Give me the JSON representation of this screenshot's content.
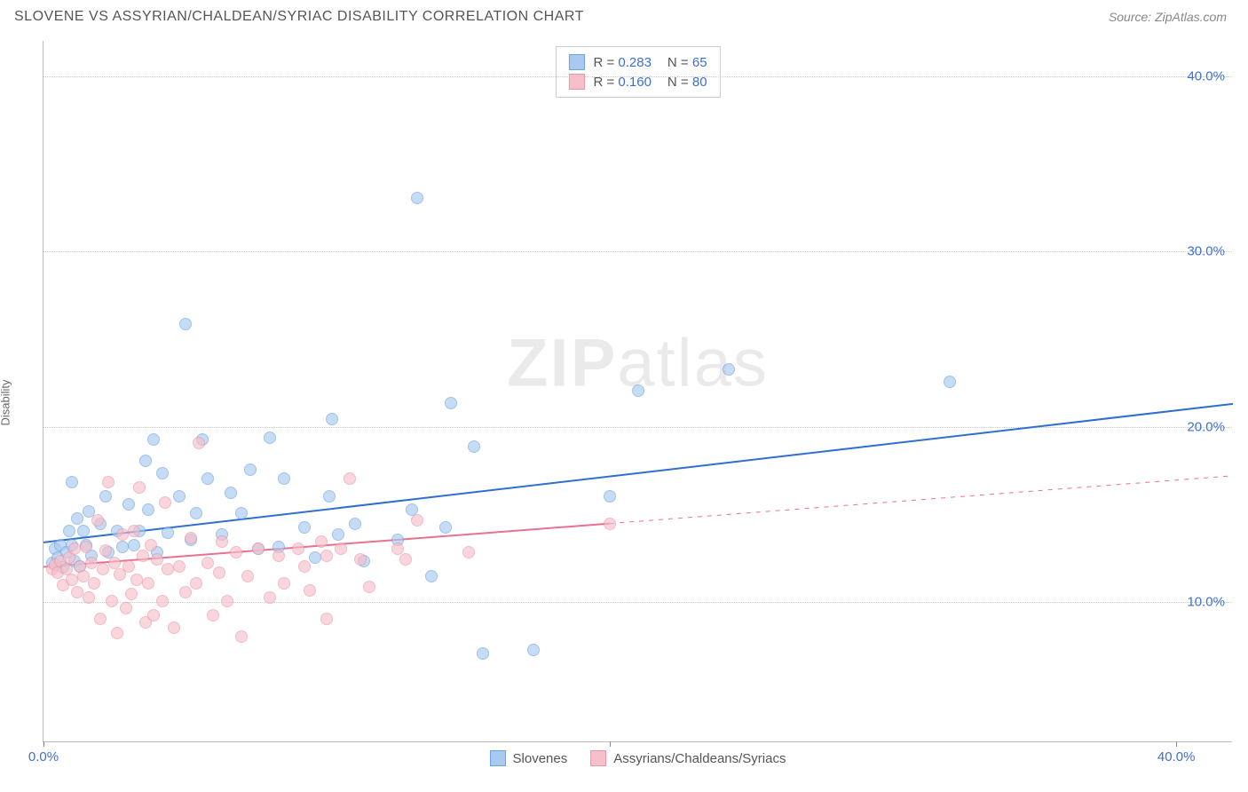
{
  "title": "SLOVENE VS ASSYRIAN/CHALDEAN/SYRIAC DISABILITY CORRELATION CHART",
  "source": "Source: ZipAtlas.com",
  "ylabel": "Disability",
  "watermark_bold": "ZIP",
  "watermark_rest": "atlas",
  "chart": {
    "type": "scatter",
    "background_color": "#ffffff",
    "grid_color": "#cccccc",
    "axis_label_color": "#3b6fd4",
    "xlim": [
      0,
      42
    ],
    "ylim": [
      2,
      42
    ],
    "xticks": [
      {
        "pos": 0,
        "label": "0.0%"
      },
      {
        "pos": 20,
        "label": ""
      },
      {
        "pos": 40,
        "label": "40.0%"
      }
    ],
    "yticks": [
      {
        "pos": 10,
        "label": "10.0%"
      },
      {
        "pos": 20,
        "label": "20.0%"
      },
      {
        "pos": 30,
        "label": "30.0%"
      },
      {
        "pos": 40,
        "label": "40.0%"
      }
    ],
    "marker_radius": 7,
    "series": [
      {
        "name": "Slovenes",
        "fill_color": "#a9caf0",
        "stroke_color": "#6da2e4",
        "fill_opacity": 0.65,
        "r_value": "0.283",
        "n_value": "65",
        "trend": {
          "x1": 0,
          "y1": 13.4,
          "x2": 42,
          "y2": 21.3,
          "color": "#2f6fd0",
          "width": 2,
          "dash": false
        },
        "points": [
          [
            0.3,
            12.2
          ],
          [
            0.4,
            13.0
          ],
          [
            0.5,
            12.5
          ],
          [
            0.6,
            13.2
          ],
          [
            0.7,
            11.9
          ],
          [
            0.8,
            12.8
          ],
          [
            0.9,
            14.0
          ],
          [
            1.0,
            13.2
          ],
          [
            1.0,
            16.8
          ],
          [
            1.1,
            12.3
          ],
          [
            1.2,
            14.7
          ],
          [
            1.3,
            12.0
          ],
          [
            1.4,
            14.0
          ],
          [
            1.5,
            13.2
          ],
          [
            1.6,
            15.1
          ],
          [
            1.7,
            12.6
          ],
          [
            2.0,
            14.4
          ],
          [
            2.2,
            16.0
          ],
          [
            2.3,
            12.8
          ],
          [
            2.6,
            14.0
          ],
          [
            2.8,
            13.1
          ],
          [
            3.0,
            15.5
          ],
          [
            3.2,
            13.2
          ],
          [
            3.4,
            14.0
          ],
          [
            3.6,
            18.0
          ],
          [
            3.7,
            15.2
          ],
          [
            3.9,
            19.2
          ],
          [
            4.0,
            12.8
          ],
          [
            4.2,
            17.3
          ],
          [
            4.4,
            13.9
          ],
          [
            4.8,
            16.0
          ],
          [
            5.0,
            25.8
          ],
          [
            5.2,
            13.5
          ],
          [
            5.4,
            15.0
          ],
          [
            5.6,
            19.2
          ],
          [
            5.8,
            17.0
          ],
          [
            6.3,
            13.8
          ],
          [
            6.6,
            16.2
          ],
          [
            7.0,
            15.0
          ],
          [
            7.3,
            17.5
          ],
          [
            7.6,
            13.0
          ],
          [
            8.0,
            19.3
          ],
          [
            8.3,
            13.1
          ],
          [
            8.5,
            17.0
          ],
          [
            9.2,
            14.2
          ],
          [
            9.6,
            12.5
          ],
          [
            10.1,
            16.0
          ],
          [
            10.2,
            20.4
          ],
          [
            10.4,
            13.8
          ],
          [
            11.0,
            14.4
          ],
          [
            11.3,
            12.3
          ],
          [
            12.5,
            13.5
          ],
          [
            13.0,
            15.2
          ],
          [
            13.2,
            33.0
          ],
          [
            13.7,
            11.4
          ],
          [
            14.2,
            14.2
          ],
          [
            14.4,
            21.3
          ],
          [
            15.2,
            18.8
          ],
          [
            15.5,
            7.0
          ],
          [
            17.3,
            7.2
          ],
          [
            20.0,
            16.0
          ],
          [
            21.0,
            22.0
          ],
          [
            24.2,
            23.2
          ],
          [
            32.0,
            22.5
          ]
        ]
      },
      {
        "name": "Assyrians/Chaldeans/Syriacs",
        "fill_color": "#f6bfca",
        "stroke_color": "#ec97a9",
        "fill_opacity": 0.65,
        "r_value": "0.160",
        "n_value": "80",
        "trend": {
          "x1": 0,
          "y1": 12.0,
          "x2": 42,
          "y2": 17.2,
          "color": "#e9718e",
          "width": 2,
          "dash_after": 20
        },
        "points": [
          [
            0.3,
            11.8
          ],
          [
            0.4,
            12.1
          ],
          [
            0.5,
            11.6
          ],
          [
            0.6,
            12.3
          ],
          [
            0.7,
            10.9
          ],
          [
            0.8,
            11.8
          ],
          [
            0.9,
            12.5
          ],
          [
            1.0,
            11.2
          ],
          [
            1.1,
            13.0
          ],
          [
            1.2,
            10.5
          ],
          [
            1.3,
            12.0
          ],
          [
            1.4,
            11.4
          ],
          [
            1.5,
            13.1
          ],
          [
            1.6,
            10.2
          ],
          [
            1.7,
            12.2
          ],
          [
            1.8,
            11.0
          ],
          [
            1.9,
            14.6
          ],
          [
            2.0,
            9.0
          ],
          [
            2.1,
            11.8
          ],
          [
            2.2,
            12.9
          ],
          [
            2.3,
            16.8
          ],
          [
            2.4,
            10.0
          ],
          [
            2.5,
            12.2
          ],
          [
            2.6,
            8.2
          ],
          [
            2.7,
            11.5
          ],
          [
            2.8,
            13.8
          ],
          [
            2.9,
            9.6
          ],
          [
            3.0,
            12.0
          ],
          [
            3.1,
            10.4
          ],
          [
            3.2,
            14.0
          ],
          [
            3.3,
            11.2
          ],
          [
            3.4,
            16.5
          ],
          [
            3.5,
            12.6
          ],
          [
            3.6,
            8.8
          ],
          [
            3.7,
            11.0
          ],
          [
            3.8,
            13.2
          ],
          [
            3.9,
            9.2
          ],
          [
            4.0,
            12.4
          ],
          [
            4.2,
            10.0
          ],
          [
            4.3,
            15.6
          ],
          [
            4.4,
            11.8
          ],
          [
            4.6,
            8.5
          ],
          [
            4.8,
            12.0
          ],
          [
            5.0,
            10.5
          ],
          [
            5.2,
            13.6
          ],
          [
            5.4,
            11.0
          ],
          [
            5.5,
            19.0
          ],
          [
            5.8,
            12.2
          ],
          [
            6.0,
            9.2
          ],
          [
            6.2,
            11.6
          ],
          [
            6.3,
            13.4
          ],
          [
            6.5,
            10.0
          ],
          [
            6.8,
            12.8
          ],
          [
            7.0,
            8.0
          ],
          [
            7.2,
            11.4
          ],
          [
            7.6,
            13.0
          ],
          [
            8.0,
            10.2
          ],
          [
            8.3,
            12.6
          ],
          [
            8.5,
            11.0
          ],
          [
            9.0,
            13.0
          ],
          [
            9.2,
            12.0
          ],
          [
            9.4,
            10.6
          ],
          [
            9.8,
            13.4
          ],
          [
            10.0,
            12.6
          ],
          [
            10.0,
            9.0
          ],
          [
            10.5,
            13.0
          ],
          [
            10.8,
            17.0
          ],
          [
            11.2,
            12.4
          ],
          [
            11.5,
            10.8
          ],
          [
            12.5,
            13.0
          ],
          [
            12.8,
            12.4
          ],
          [
            13.2,
            14.6
          ],
          [
            15.0,
            12.8
          ],
          [
            20.0,
            14.4
          ]
        ]
      }
    ]
  },
  "legend_top": {
    "r_label": "R =",
    "n_label": "N ="
  }
}
